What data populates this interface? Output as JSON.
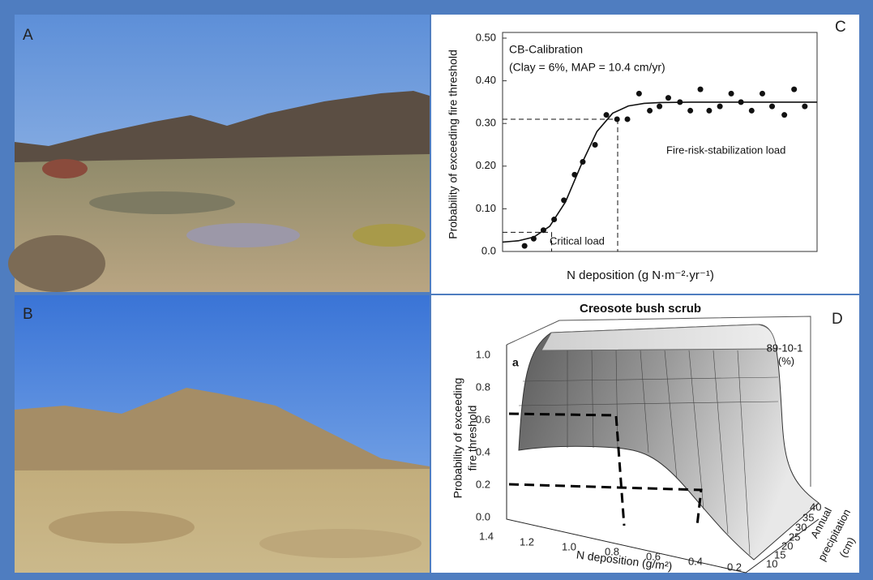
{
  "panels": {
    "a": "A",
    "b": "B",
    "c": "C",
    "d": "D"
  },
  "chart_data": {
    "type": "scatter",
    "title": "CB-Calibration",
    "subtitle": "(Clay = 6%, MAP = 10.4 cm/yr)",
    "x_label": "N deposition (g N·m⁻²·yr⁻¹)",
    "y_label": "Probability of exceeding fire threshold",
    "annotations": [
      "Fire-risk-stabilization load",
      "Critical load"
    ],
    "xlim": [
      0,
      100
    ],
    "ylim": [
      0,
      0.5
    ],
    "yticks": [
      {
        "value": 0,
        "label": "0.0"
      },
      {
        "value": 0.1,
        "label": "0.10"
      },
      {
        "value": 0.2,
        "label": "0.20"
      },
      {
        "value": 0.3,
        "label": "0.30"
      },
      {
        "value": 0.4,
        "label": "0.40"
      },
      {
        "value": 0.5,
        "label": "0.50"
      }
    ],
    "series": [
      {
        "type": "scatter",
        "color": "#111111",
        "x": [
          7.0,
          9.9,
          13.0,
          16.4,
          19.5,
          22.9,
          25.5,
          29.4,
          33.0,
          36.4,
          39.7,
          43.4,
          46.8,
          49.9,
          52.7,
          56.4,
          59.7,
          62.9,
          65.7,
          69.1,
          72.7,
          75.8,
          79.2,
          82.6,
          85.7,
          89.6,
          92.7,
          96.1
        ],
        "values": [
          0.013,
          0.03,
          0.05,
          0.075,
          0.12,
          0.18,
          0.21,
          0.25,
          0.32,
          0.31,
          0.31,
          0.37,
          0.33,
          0.34,
          0.36,
          0.35,
          0.33,
          0.38,
          0.33,
          0.34,
          0.37,
          0.35,
          0.33,
          0.37,
          0.34,
          0.32,
          0.38,
          0.34
        ]
      },
      {
        "type": "line",
        "color": "#111111",
        "x": [
          0,
          5,
          10,
          15,
          20,
          25,
          30,
          35,
          40,
          45,
          50,
          60,
          70,
          80,
          90,
          100
        ],
        "values": [
          0.022,
          0.025,
          0.034,
          0.059,
          0.116,
          0.203,
          0.281,
          0.324,
          0.341,
          0.347,
          0.349,
          0.35,
          0.35,
          0.35,
          0.35,
          0.35
        ]
      }
    ],
    "reference_lines": [
      {
        "x": 15.6,
        "y": 0.045
      },
      {
        "x": 36.6,
        "y": 0.31
      }
    ]
  },
  "panel_d": {
    "title": "Creosote bush scrub",
    "subpanel": "a",
    "legend": [
      "89-10-1",
      "(%)"
    ],
    "y_label": [
      "Probability of exceeding",
      "fire threshold"
    ],
    "x_label": "N deposition (g/m²)",
    "z_label": [
      "Annual",
      "precipitation",
      "(cm)"
    ],
    "y_ticks": [
      "1.0",
      "0.8",
      "0.6",
      "0.4",
      "0.2",
      "0.0"
    ],
    "x_ticks": [
      "1.4",
      "1.2",
      "1.0",
      "0.8",
      "0.6",
      "0.4",
      "0.2"
    ],
    "z_ticks": [
      "10",
      "15",
      "20",
      "25",
      "30",
      "35",
      "40"
    ]
  }
}
